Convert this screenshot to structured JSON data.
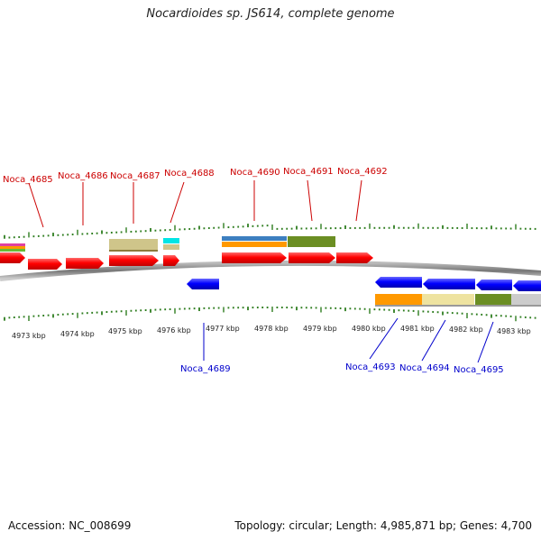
{
  "title": "Nocardioides sp. JS614, complete genome",
  "footer": {
    "accession": "Accession: NC_008699",
    "topology": "Topology: circular; Length: 4,985,871 bp; Genes: 4,700"
  },
  "colors": {
    "forward": "#ff0000",
    "reverse": "#0000ff",
    "tick": "#2e7d1f",
    "backbone": "#888888"
  },
  "kbp_labels": [
    "4973 kbp",
    "4974 kbp",
    "4975 kbp",
    "4976 kbp",
    "4977 kbp",
    "4978 kbp",
    "4979 kbp",
    "4980 kbp",
    "4981 kbp",
    "4982 kbp",
    "4983 kbp"
  ],
  "forward_labels": [
    "Noca_4685",
    "Noca_4686",
    "Noca_4687",
    "Noca_4688",
    "Noca_4690",
    "Noca_4691",
    "Noca_4692"
  ],
  "reverse_labels": [
    "Noca_4689",
    "Noca_4693",
    "Noca_4694",
    "Noca_4695"
  ]
}
